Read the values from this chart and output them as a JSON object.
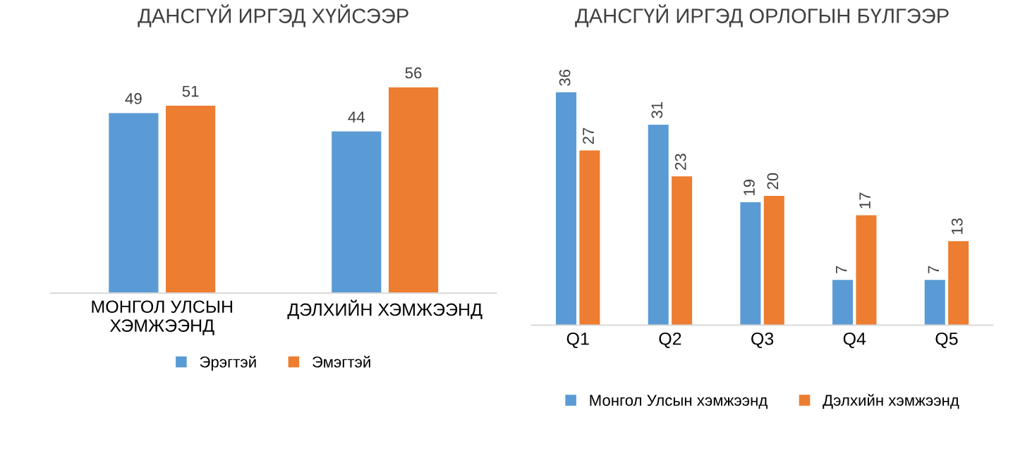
{
  "chart_data": [
    {
      "type": "bar",
      "title": "ДАНСГҮЙ ИРГЭД ХҮЙСЭЭР",
      "categories": [
        "МОНГОЛ УЛСЫН ХЭМЖЭЭНД",
        "ДЭЛХИЙН ХЭМЖЭЭНД"
      ],
      "series": [
        {
          "name": "Эрэгтэй",
          "color": "#5b9bd5",
          "values": [
            49,
            44
          ]
        },
        {
          "name": "Эмэгтэй",
          "color": "#ed7d31",
          "values": [
            51,
            56
          ]
        }
      ],
      "data_labels": true,
      "legend": "bottom",
      "grid": false
    },
    {
      "type": "bar",
      "title": "ДАНСГҮЙ ИРГЭД ОРЛОГЫН БҮЛГЭЭР",
      "categories": [
        "Q1",
        "Q2",
        "Q3",
        "Q4",
        "Q5"
      ],
      "series": [
        {
          "name": "Монгол Улсын хэмжээнд",
          "color": "#5b9bd5",
          "values": [
            36,
            31,
            19,
            7,
            7
          ]
        },
        {
          "name": "Дэлхийн хэмжээнд",
          "color": "#ed7d31",
          "values": [
            27,
            23,
            20,
            17,
            13
          ]
        }
      ],
      "data_labels": true,
      "legend": "bottom",
      "grid": false
    }
  ]
}
